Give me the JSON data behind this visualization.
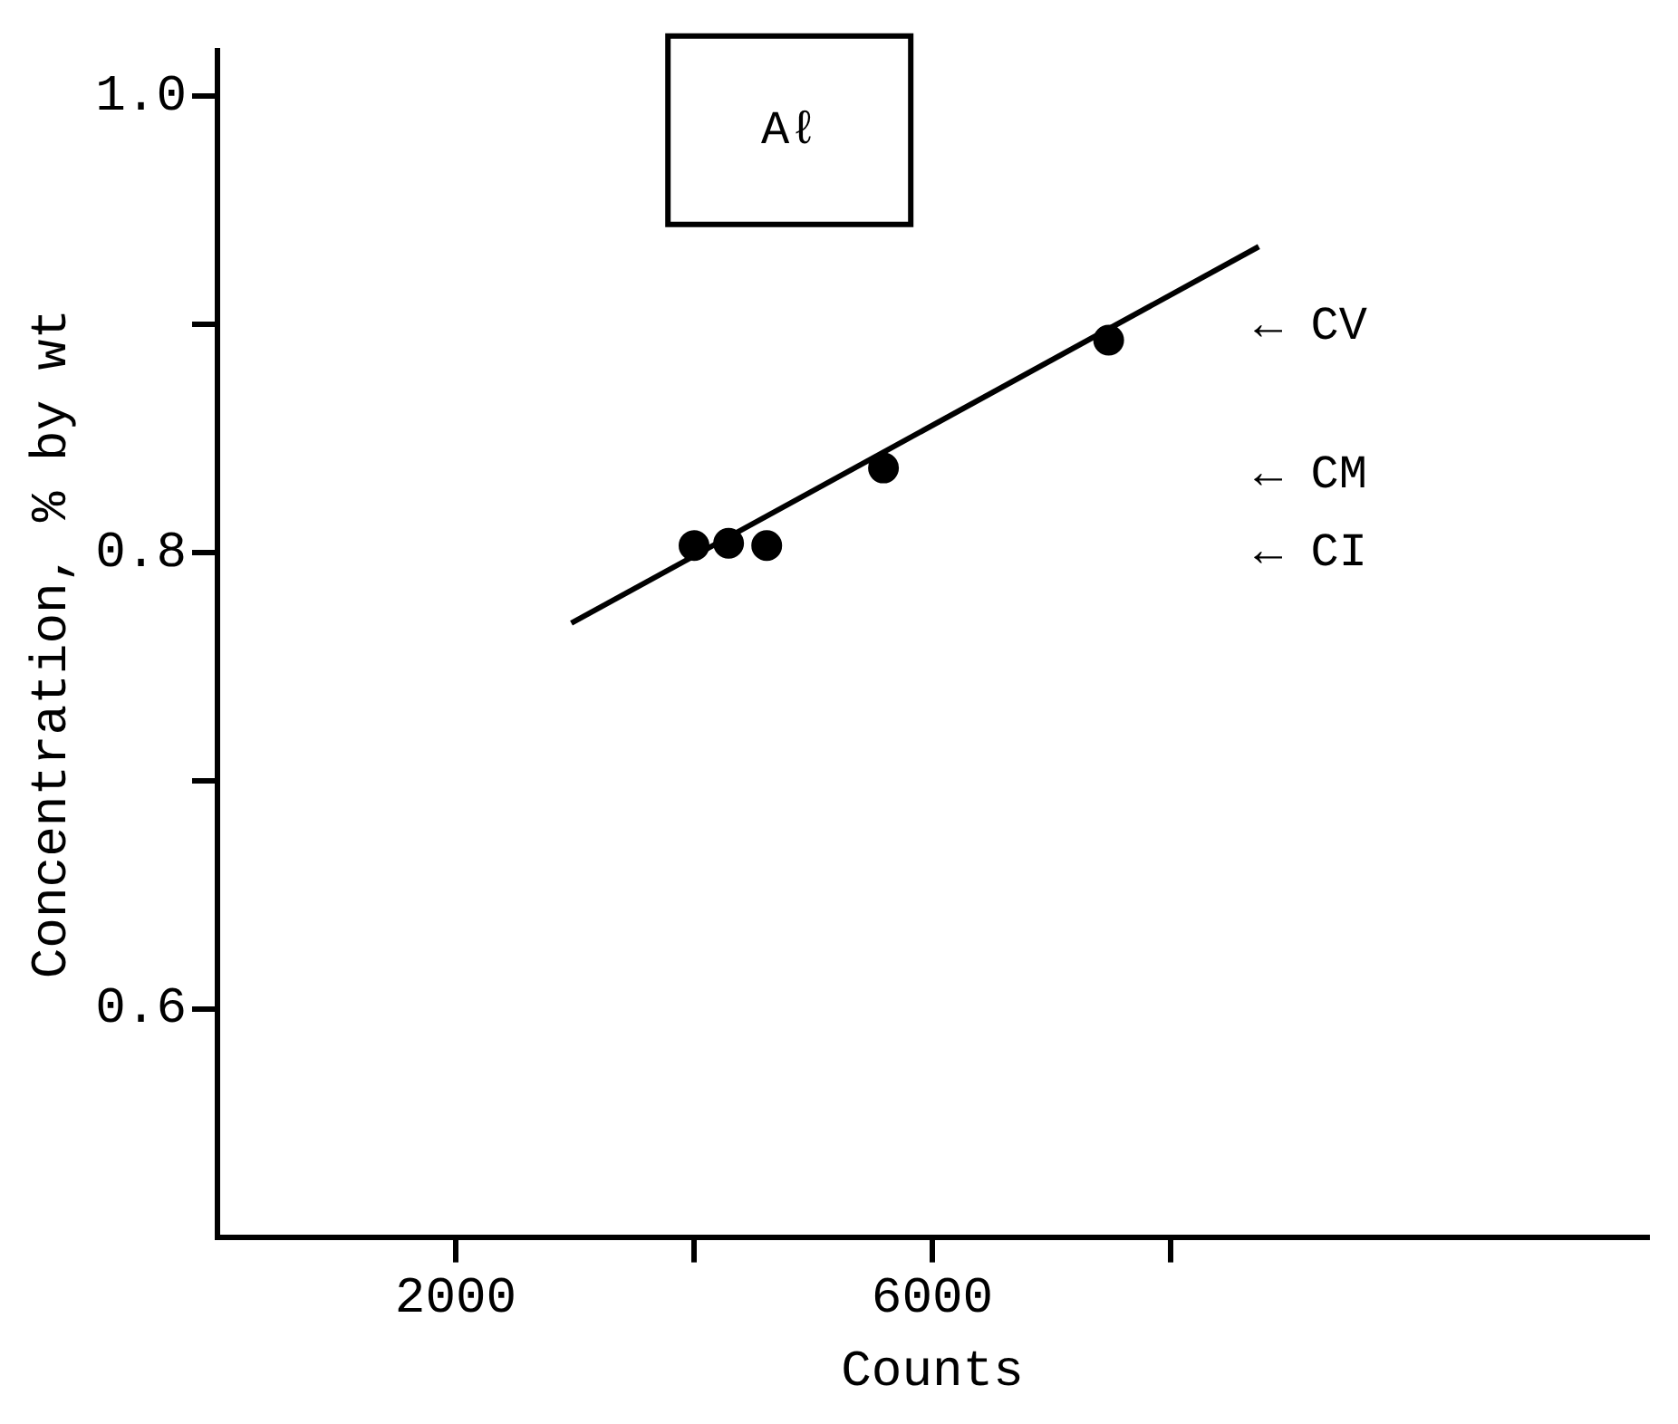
{
  "chart_data": {
    "type": "scatter",
    "xlabel": "Counts",
    "ylabel": "Concentration, % by wt",
    "xlim": [
      0,
      12000
    ],
    "xticks": [
      {
        "value": 2000,
        "label": "2000"
      },
      {
        "value": 4000,
        "label": null
      },
      {
        "value": 6000,
        "label": "6000"
      },
      {
        "value": 8000,
        "label": null
      }
    ],
    "ylim": [
      0.5,
      1.02
    ],
    "yticks": [
      {
        "value": 0.6,
        "label": "0.6"
      },
      {
        "value": 0.7,
        "label": null
      },
      {
        "value": 0.8,
        "label": "0.8"
      },
      {
        "value": 0.9,
        "label": null
      },
      {
        "value": 1.0,
        "label": "1.0"
      }
    ],
    "grid": false,
    "legend": false,
    "series": [
      {
        "marker": "circle",
        "color": "#000000",
        "x": [
          4000,
          4290,
          4610,
          5590,
          7480
        ],
        "values": [
          0.803,
          0.804,
          0.803,
          0.837,
          0.893
        ]
      },
      {
        "type": "line",
        "marker": "none",
        "color": "#000000",
        "x": [
          2970,
          8740
        ],
        "values": [
          0.769,
          0.934
        ]
      }
    ],
    "annotations": [
      "Aℓ",
      "← CV",
      "← CM",
      "← CI"
    ]
  }
}
